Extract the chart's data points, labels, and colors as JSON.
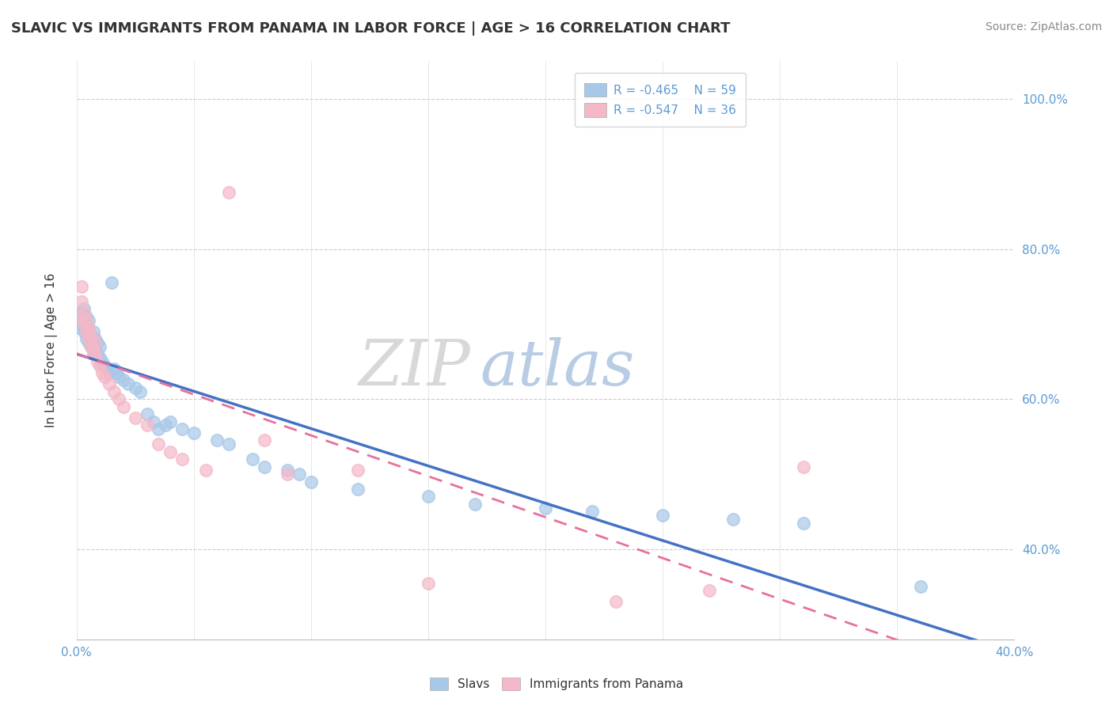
{
  "title": "SLAVIC VS IMMIGRANTS FROM PANAMA IN LABOR FORCE | AGE > 16 CORRELATION CHART",
  "source": "Source: ZipAtlas.com",
  "ylabel": "In Labor Force | Age > 16",
  "xlim": [
    0.0,
    0.4
  ],
  "ylim": [
    0.28,
    1.05
  ],
  "xticks": [
    0.0,
    0.05,
    0.1,
    0.15,
    0.2,
    0.25,
    0.3,
    0.35,
    0.4
  ],
  "yticks": [
    0.4,
    0.6,
    0.8,
    1.0
  ],
  "yticklabels": [
    "40.0%",
    "60.0%",
    "80.0%",
    "100.0%"
  ],
  "slavs_color": "#a8c8e8",
  "panama_color": "#f4b8c8",
  "trendline_slavs_color": "#4472c4",
  "trendline_panama_color": "#e8709a",
  "legend_r_slavs": "R = -0.465",
  "legend_n_slavs": "N = 59",
  "legend_r_panama": "R = -0.547",
  "legend_n_panama": "N = 36",
  "slavs_x": [
    0.001,
    0.001,
    0.002,
    0.002,
    0.003,
    0.003,
    0.003,
    0.004,
    0.004,
    0.004,
    0.005,
    0.005,
    0.005,
    0.006,
    0.006,
    0.007,
    0.007,
    0.007,
    0.008,
    0.008,
    0.009,
    0.009,
    0.01,
    0.01,
    0.011,
    0.012,
    0.013,
    0.014,
    0.015,
    0.016,
    0.017,
    0.018,
    0.02,
    0.022,
    0.025,
    0.027,
    0.03,
    0.033,
    0.035,
    0.038,
    0.04,
    0.045,
    0.05,
    0.06,
    0.065,
    0.075,
    0.08,
    0.09,
    0.095,
    0.1,
    0.12,
    0.15,
    0.17,
    0.2,
    0.22,
    0.25,
    0.28,
    0.31,
    0.36
  ],
  "slavs_y": [
    0.695,
    0.71,
    0.7,
    0.715,
    0.69,
    0.705,
    0.72,
    0.68,
    0.695,
    0.71,
    0.675,
    0.69,
    0.705,
    0.67,
    0.685,
    0.66,
    0.675,
    0.69,
    0.665,
    0.68,
    0.66,
    0.675,
    0.655,
    0.67,
    0.65,
    0.645,
    0.64,
    0.635,
    0.755,
    0.64,
    0.635,
    0.63,
    0.625,
    0.62,
    0.615,
    0.61,
    0.58,
    0.57,
    0.56,
    0.565,
    0.57,
    0.56,
    0.555,
    0.545,
    0.54,
    0.52,
    0.51,
    0.505,
    0.5,
    0.49,
    0.48,
    0.47,
    0.46,
    0.455,
    0.45,
    0.445,
    0.44,
    0.435,
    0.35
  ],
  "panama_x": [
    0.001,
    0.002,
    0.002,
    0.003,
    0.003,
    0.004,
    0.004,
    0.005,
    0.005,
    0.006,
    0.006,
    0.007,
    0.008,
    0.008,
    0.009,
    0.01,
    0.011,
    0.012,
    0.014,
    0.016,
    0.018,
    0.02,
    0.025,
    0.03,
    0.035,
    0.04,
    0.045,
    0.055,
    0.065,
    0.08,
    0.09,
    0.12,
    0.15,
    0.23,
    0.27,
    0.31
  ],
  "panama_y": [
    0.71,
    0.75,
    0.73,
    0.7,
    0.715,
    0.69,
    0.705,
    0.68,
    0.695,
    0.67,
    0.685,
    0.665,
    0.66,
    0.675,
    0.65,
    0.645,
    0.635,
    0.63,
    0.62,
    0.61,
    0.6,
    0.59,
    0.575,
    0.565,
    0.54,
    0.53,
    0.52,
    0.505,
    0.875,
    0.545,
    0.5,
    0.505,
    0.355,
    0.33,
    0.345,
    0.51
  ]
}
